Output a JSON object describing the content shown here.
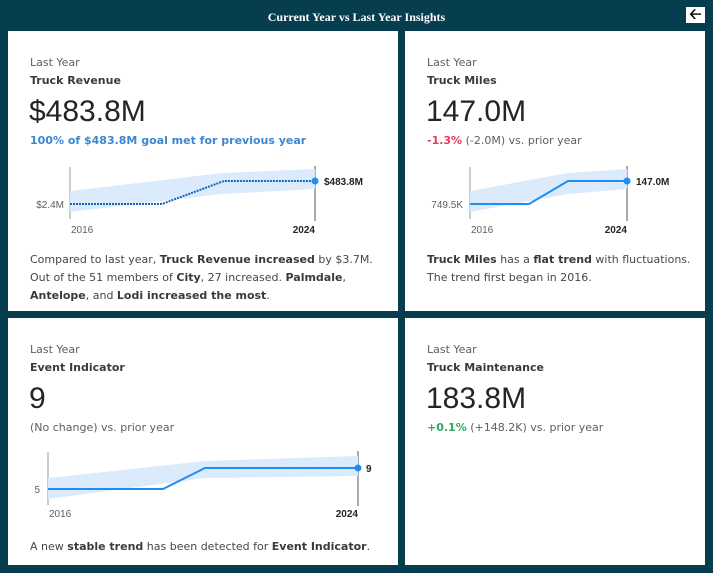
{
  "header": {
    "title": "Current Year vs Last Year Insights",
    "back_icon": "arrow-left-icon"
  },
  "colors": {
    "background": "#063d4f",
    "line": "#1e8ff0",
    "band": "#dcebfb",
    "negative": "#e8385b",
    "positive": "#2eaa5c",
    "goal": "#3a87d3"
  },
  "cards": [
    {
      "period": "Last Year",
      "metric": "Truck Revenue",
      "value": "$483.8M",
      "sub": "100% of $483.8M goal met for previous year",
      "chart": {
        "start_label": "$2.4M",
        "end_label": "$483.8M",
        "x_start": "2016",
        "x_end": "2024"
      },
      "desc": {
        "t1": "Compared to last year, ",
        "b1": "Truck Revenue increased",
        "t2": " by $3.7M. Out of the 51 members of ",
        "b2": "City",
        "t3": ", 27 increased. ",
        "b3": "Palmdale",
        "t4": ", ",
        "b4": "Antelope",
        "t5": ", and ",
        "b5": "Lodi increased the most",
        "t6": "."
      }
    },
    {
      "period": "Last Year",
      "metric": "Truck Miles",
      "value": "147.0M",
      "change_pct": "-1.3%",
      "change_rest": " (-2.0M) vs. prior year",
      "chart": {
        "start_label": "749.5K",
        "end_label": "147.0M",
        "x_start": "2016",
        "x_end": "2024"
      },
      "desc": {
        "b1": "Truck Miles",
        "t1": " has a ",
        "b2": "flat trend",
        "t2": " with fluctuations. The trend first began in 2016."
      }
    },
    {
      "period": "Last Year",
      "metric": "Event Indicator",
      "value": "9",
      "sub": "(No change) vs. prior year",
      "chart": {
        "start_label": "5",
        "end_label": "9",
        "x_start": "2016",
        "x_end": "2024"
      },
      "desc": {
        "t1": "A new ",
        "b1": "stable trend",
        "t2": " has been detected for ",
        "b2": "Event Indicator",
        "t3": "."
      }
    },
    {
      "period": "Last Year",
      "metric": "Truck Maintenance",
      "value": "183.8M",
      "change_pct": "+0.1%",
      "change_rest": " (+148.2K) vs. prior year"
    }
  ]
}
